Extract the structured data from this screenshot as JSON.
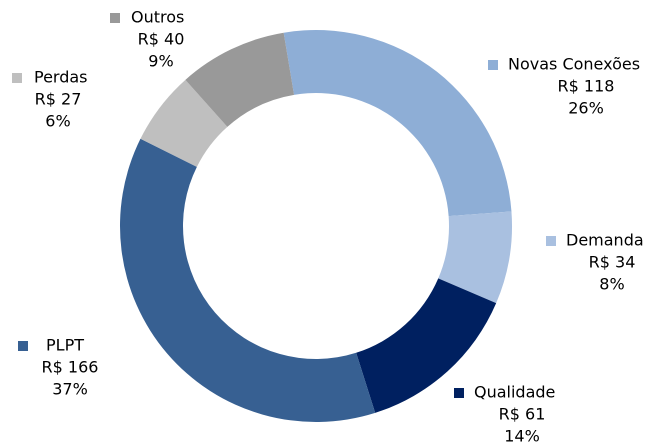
{
  "chart_data": {
    "type": "donut",
    "categories": [
      "Novas Conexões",
      "Demanda",
      "Qualidade",
      "PLPT",
      "Perdas",
      "Outros"
    ],
    "values": [
      118,
      34,
      61,
      166,
      27,
      40
    ],
    "value_labels": [
      "R$ 118",
      "R$ 34",
      "R$ 61",
      "R$ 166",
      "R$ 27",
      "R$ 40"
    ],
    "percent_labels": [
      "26%",
      "8%",
      "14%",
      "37%",
      "6%",
      "9%"
    ],
    "colors": [
      "#8eaed6",
      "#a9c0e0",
      "#002060",
      "#376092",
      "#bfbfbf",
      "#999999"
    ]
  }
}
